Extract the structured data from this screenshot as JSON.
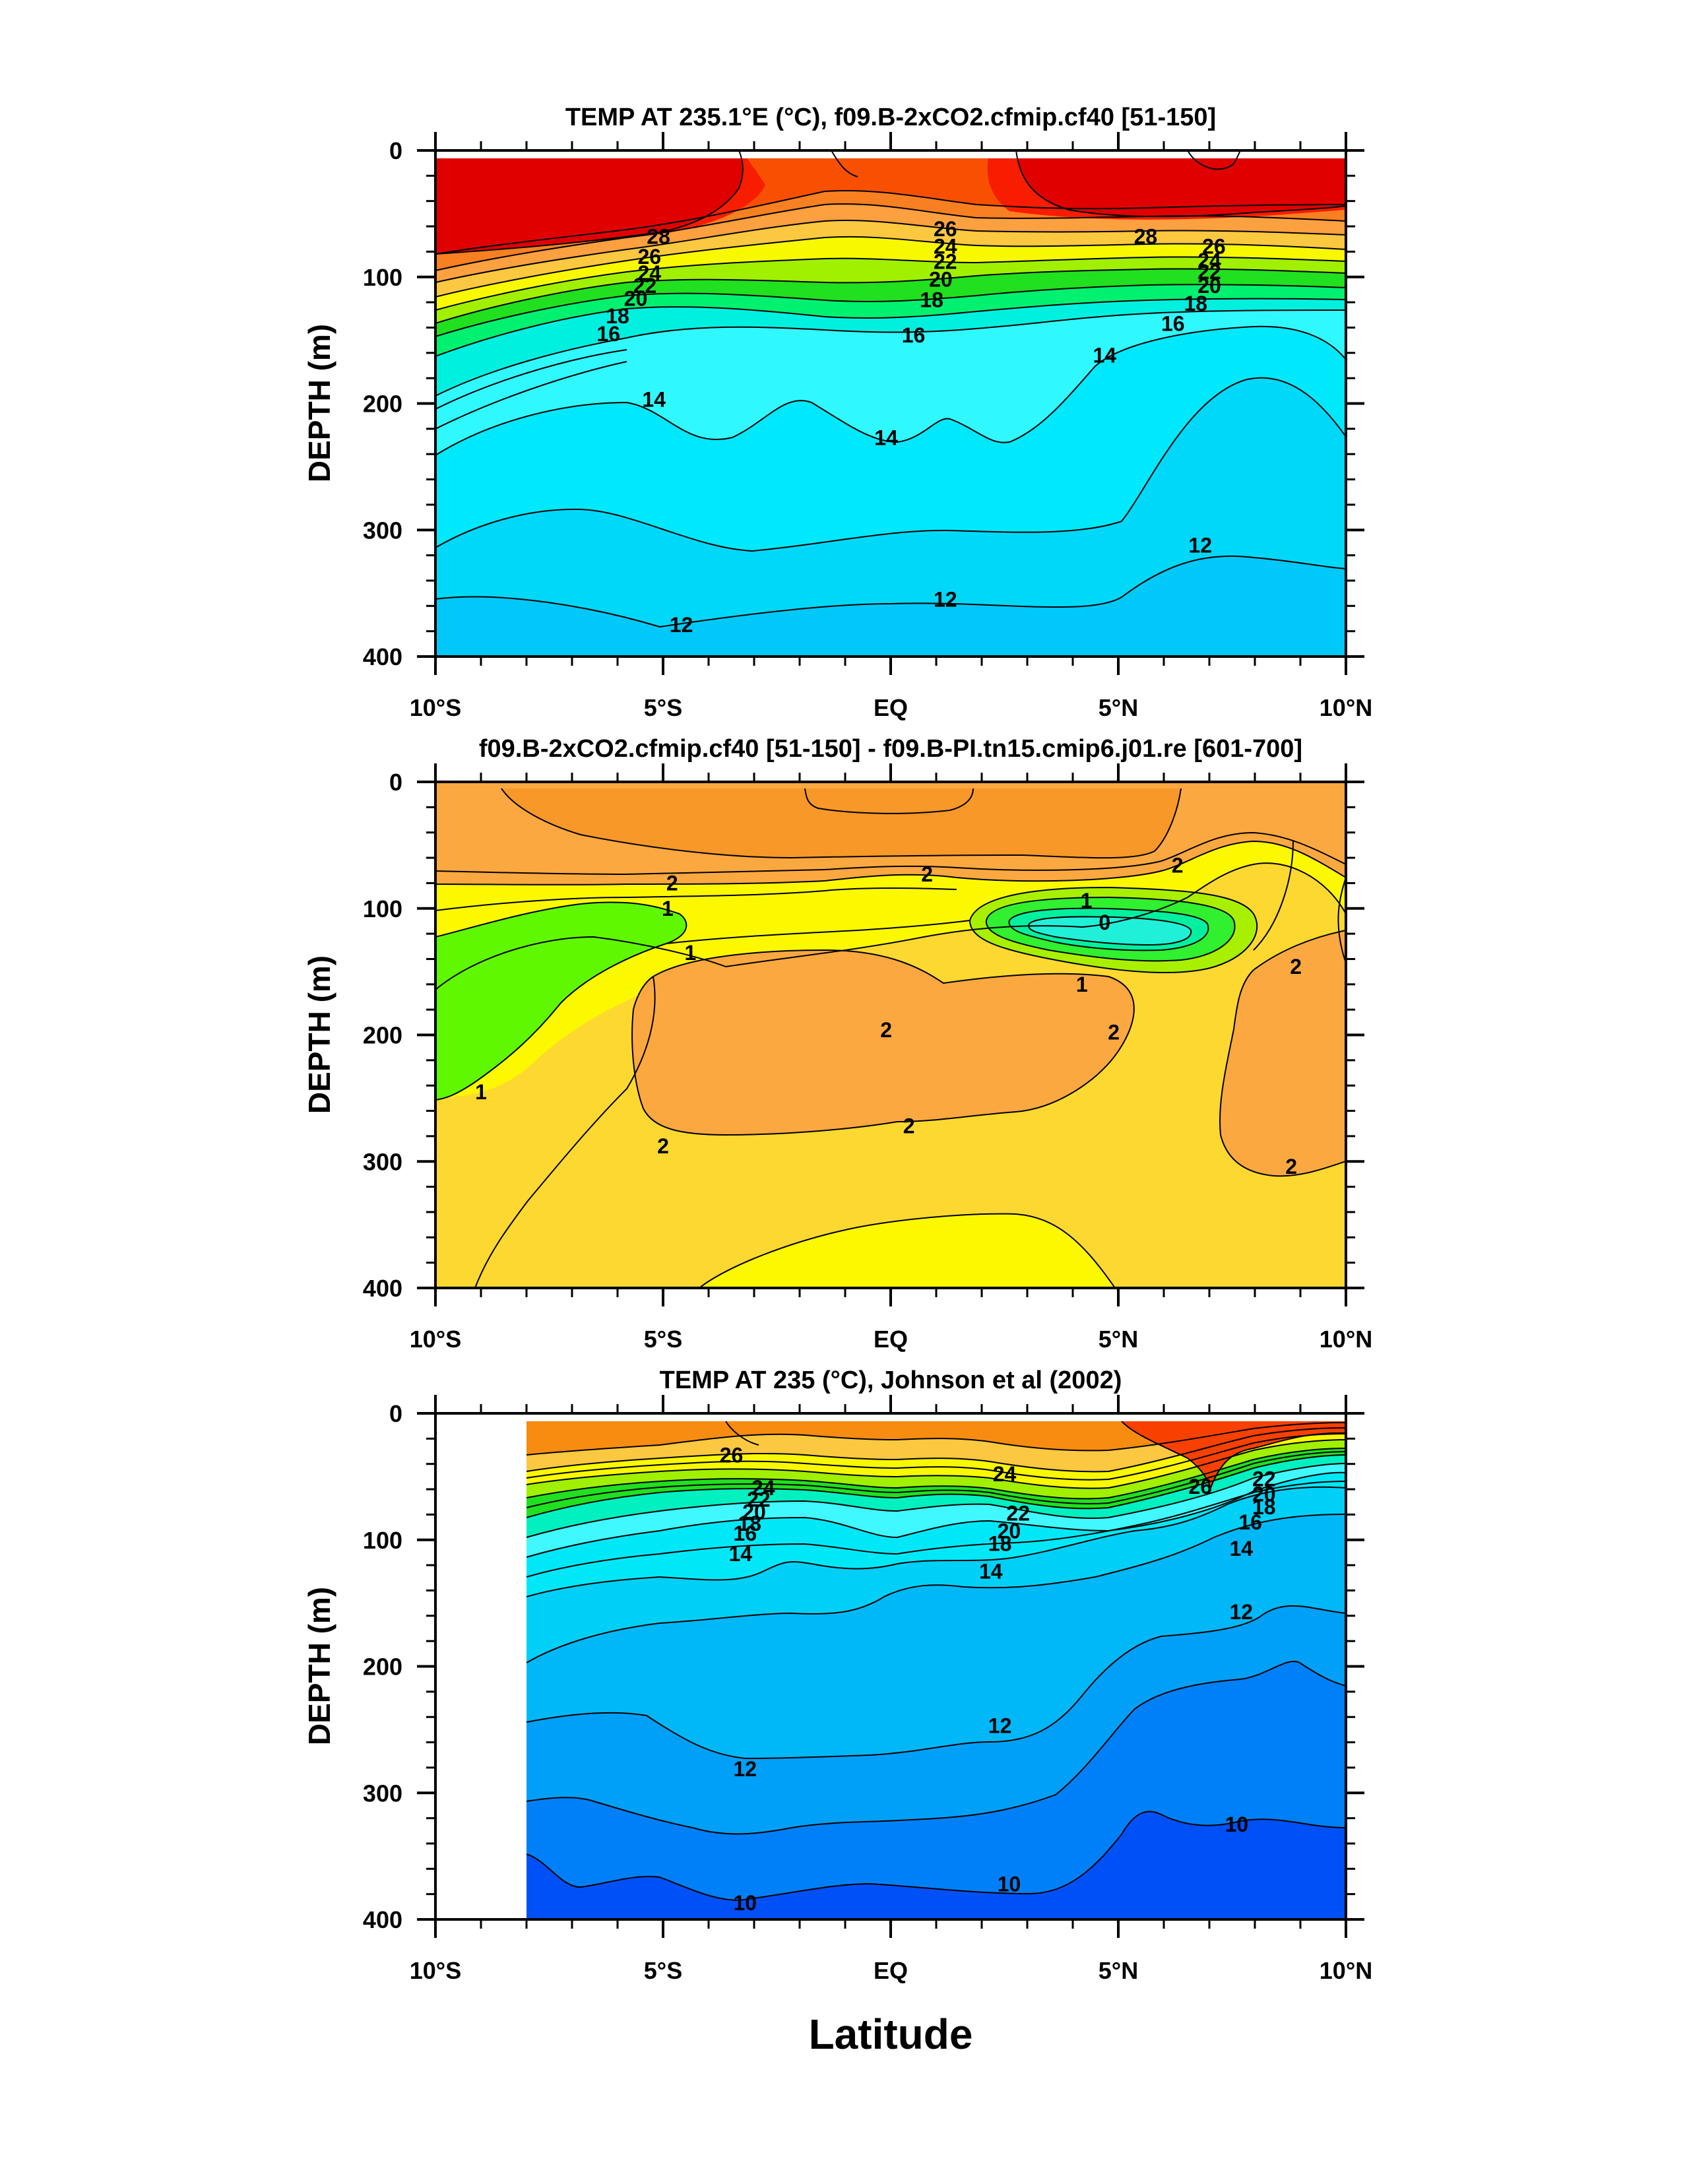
{
  "chart_data": [
    {
      "type": "contour",
      "title": "TEMP AT 235.1°E (°C), f09.B-2xCO2.cfmip.cf40 [51-150]",
      "ylabel": "DEPTH (m)",
      "xlabel": "",
      "x_ticks": [
        "10°S",
        "5°S",
        "EQ",
        "5°N",
        "10°N"
      ],
      "x_range": [
        -10,
        10
      ],
      "y_ticks": [
        "0",
        "100",
        "200",
        "300",
        "400"
      ],
      "y_range": [
        0,
        400
      ],
      "y_reversed": true,
      "contour_interval": 1,
      "contour_labels": [
        {
          "text": "28",
          "lat": -5.1,
          "depth": 68
        },
        {
          "text": "26",
          "lat": -5.3,
          "depth": 84
        },
        {
          "text": "24",
          "lat": -5.3,
          "depth": 97
        },
        {
          "text": "22",
          "lat": -5.4,
          "depth": 107
        },
        {
          "text": "20",
          "lat": -5.6,
          "depth": 117
        },
        {
          "text": "18",
          "lat": -6.0,
          "depth": 131
        },
        {
          "text": "16",
          "lat": -6.2,
          "depth": 145
        },
        {
          "text": "14",
          "lat": -5.2,
          "depth": 197
        },
        {
          "text": "14",
          "lat": -0.1,
          "depth": 227
        },
        {
          "text": "14",
          "lat": 4.7,
          "depth": 162
        },
        {
          "text": "12",
          "lat": -4.6,
          "depth": 375
        },
        {
          "text": "12",
          "lat": 1.2,
          "depth": 355
        },
        {
          "text": "12",
          "lat": 6.8,
          "depth": 312
        },
        {
          "text": "26",
          "lat": 1.2,
          "depth": 62
        },
        {
          "text": "24",
          "lat": 1.2,
          "depth": 76
        },
        {
          "text": "22",
          "lat": 1.2,
          "depth": 88
        },
        {
          "text": "20",
          "lat": 1.1,
          "depth": 102
        },
        {
          "text": "18",
          "lat": 0.9,
          "depth": 118
        },
        {
          "text": "16",
          "lat": 0.5,
          "depth": 146
        },
        {
          "text": "28",
          "lat": 5.6,
          "depth": 68
        },
        {
          "text": "26",
          "lat": 7.1,
          "depth": 76
        },
        {
          "text": "24",
          "lat": 7.0,
          "depth": 87
        },
        {
          "text": "22",
          "lat": 7.0,
          "depth": 96
        },
        {
          "text": "20",
          "lat": 7.0,
          "depth": 107
        },
        {
          "text": "18",
          "lat": 6.7,
          "depth": 121
        },
        {
          "text": "16",
          "lat": 6.2,
          "depth": 137
        }
      ]
    },
    {
      "type": "contour",
      "title": "f09.B-2xCO2.cfmip.cf40 [51-150] - f09.B-PI.tn15.cmip6.j01.re [601-700]",
      "ylabel": "DEPTH (m)",
      "xlabel": "",
      "x_ticks": [
        "10°S",
        "5°S",
        "EQ",
        "5°N",
        "10°N"
      ],
      "x_range": [
        -10,
        10
      ],
      "y_ticks": [
        "0",
        "100",
        "200",
        "300",
        "400"
      ],
      "y_range": [
        0,
        400
      ],
      "y_reversed": true,
      "contour_interval": 0.5,
      "contour_labels": [
        {
          "text": "2",
          "lat": -4.8,
          "depth": 80
        },
        {
          "text": "2",
          "lat": 0.8,
          "depth": 73
        },
        {
          "text": "2",
          "lat": 6.3,
          "depth": 66
        },
        {
          "text": "1",
          "lat": -4.9,
          "depth": 100
        },
        {
          "text": "1",
          "lat": -4.4,
          "depth": 135
        },
        {
          "text": "1",
          "lat": 4.3,
          "depth": 94
        },
        {
          "text": "0",
          "lat": 4.7,
          "depth": 111
        },
        {
          "text": "1",
          "lat": 4.2,
          "depth": 160
        },
        {
          "text": "2",
          "lat": 8.9,
          "depth": 146
        },
        {
          "text": "2",
          "lat": -0.1,
          "depth": 196
        },
        {
          "text": "2",
          "lat": 4.9,
          "depth": 198
        },
        {
          "text": "2",
          "lat": 0.4,
          "depth": 272
        },
        {
          "text": "2",
          "lat": -5.0,
          "depth": 288
        },
        {
          "text": "2",
          "lat": 8.8,
          "depth": 304
        },
        {
          "text": "1",
          "lat": -9.0,
          "depth": 245
        }
      ]
    },
    {
      "type": "contour",
      "title": "TEMP AT 235 (°C), Johnson et al (2002)",
      "ylabel": "DEPTH (m)",
      "xlabel": "Latitude",
      "x_ticks": [
        "10°S",
        "5°S",
        "EQ",
        "5°N",
        "10°N"
      ],
      "x_range": [
        -10,
        10
      ],
      "y_ticks": [
        "0",
        "100",
        "200",
        "300",
        "400"
      ],
      "y_range": [
        0,
        400
      ],
      "y_reversed": true,
      "data_lat_range": [
        -8,
        10
      ],
      "contour_interval": 1,
      "contour_labels": [
        {
          "text": "26",
          "lat": -3.5,
          "depth": 33
        },
        {
          "text": "24",
          "lat": -2.8,
          "depth": 59
        },
        {
          "text": "22",
          "lat": -2.9,
          "depth": 68
        },
        {
          "text": "20",
          "lat": -3.0,
          "depth": 78
        },
        {
          "text": "18",
          "lat": -3.1,
          "depth": 87
        },
        {
          "text": "16",
          "lat": -3.2,
          "depth": 95
        },
        {
          "text": "14",
          "lat": -3.3,
          "depth": 111
        },
        {
          "text": "24",
          "lat": 2.5,
          "depth": 48
        },
        {
          "text": "22",
          "lat": 2.8,
          "depth": 79
        },
        {
          "text": "20",
          "lat": 2.6,
          "depth": 93
        },
        {
          "text": "18",
          "lat": 2.4,
          "depth": 103
        },
        {
          "text": "14",
          "lat": 2.2,
          "depth": 125
        },
        {
          "text": "26",
          "lat": 6.8,
          "depth": 58
        },
        {
          "text": "22",
          "lat": 8.2,
          "depth": 52
        },
        {
          "text": "20",
          "lat": 8.2,
          "depth": 64
        },
        {
          "text": "18",
          "lat": 8.2,
          "depth": 74
        },
        {
          "text": "16",
          "lat": 7.9,
          "depth": 86
        },
        {
          "text": "14",
          "lat": 7.7,
          "depth": 107
        },
        {
          "text": "12",
          "lat": 7.7,
          "depth": 157
        },
        {
          "text": "12",
          "lat": 2.4,
          "depth": 247
        },
        {
          "text": "12",
          "lat": -3.2,
          "depth": 281
        },
        {
          "text": "10",
          "lat": 7.6,
          "depth": 325
        },
        {
          "text": "10",
          "lat": 2.6,
          "depth": 372
        },
        {
          "text": "10",
          "lat": -3.2,
          "depth": 387
        }
      ]
    }
  ]
}
